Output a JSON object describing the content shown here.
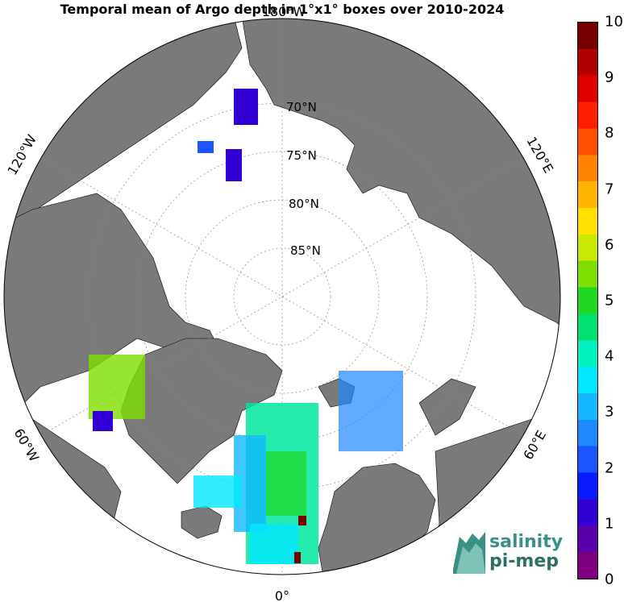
{
  "title": "Temporal mean of Argo depth in 1°x1° boxes over 2010-2024",
  "projection": "north-polar-stereographic",
  "meridian_labels": [
    {
      "text": "180°W",
      "lon": 180
    },
    {
      "text": "120°W",
      "lon": -120
    },
    {
      "text": "60°W",
      "lon": -60
    },
    {
      "text": "0°",
      "lon": 0
    },
    {
      "text": "60°E",
      "lon": 60
    },
    {
      "text": "120°E",
      "lon": 120
    }
  ],
  "parallel_labels": [
    {
      "text": "70°N",
      "lat": 70
    },
    {
      "text": "75°N",
      "lat": 75
    },
    {
      "text": "80°N",
      "lat": 80
    },
    {
      "text": "85°N",
      "lat": 85
    }
  ],
  "colorbar": {
    "min": 0,
    "max": 10,
    "tick_labels": [
      "0",
      "1",
      "2",
      "3",
      "4",
      "5",
      "6",
      "7",
      "8",
      "9",
      "10"
    ],
    "colors": [
      "#7f007f",
      "#5a00a8",
      "#3200d4",
      "#0a1cff",
      "#1a55ff",
      "#1e88ff",
      "#13b8ff",
      "#00e8ff",
      "#00f0c0",
      "#00e070",
      "#20d820",
      "#7ee000",
      "#c8e800",
      "#ffe000",
      "#ffb400",
      "#ff8200",
      "#ff5000",
      "#ff1e00",
      "#e00000",
      "#b00000",
      "#7a0000"
    ]
  },
  "colors": {
    "land": "#7a7a7a",
    "ocean": "#ffffff",
    "grid": "#888888",
    "coast": "#000000"
  },
  "logo": {
    "line1": "salinity",
    "line2": "pi-mep"
  }
}
